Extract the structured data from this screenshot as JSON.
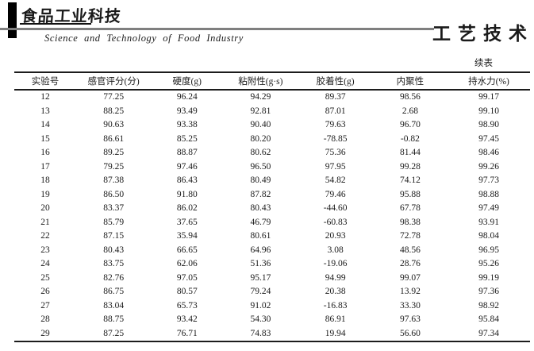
{
  "masthead": {
    "logo_cn": "食品工业科技",
    "journal_en": "Science and Technology of Food Industry",
    "section_cn": "工艺技术"
  },
  "table": {
    "continued_label": "续表",
    "headers": [
      "实验号",
      "感官评分(分)",
      "硬度(g)",
      "粘附性(g·s)",
      "胶着性(g)",
      "内聚性",
      "持水力(%)"
    ],
    "rows": [
      [
        "12",
        "77.25",
        "96.24",
        "94.29",
        "89.37",
        "98.56",
        "99.17"
      ],
      [
        "13",
        "88.25",
        "93.49",
        "92.81",
        "87.01",
        "2.68",
        "99.10"
      ],
      [
        "14",
        "90.63",
        "93.38",
        "90.40",
        "79.63",
        "96.70",
        "98.90"
      ],
      [
        "15",
        "86.61",
        "85.25",
        "80.20",
        "-78.85",
        "-0.82",
        "97.45"
      ],
      [
        "16",
        "89.25",
        "88.87",
        "80.62",
        "75.36",
        "81.44",
        "98.46"
      ],
      [
        "17",
        "79.25",
        "97.46",
        "96.50",
        "97.95",
        "99.28",
        "99.26"
      ],
      [
        "18",
        "87.38",
        "86.43",
        "80.49",
        "54.82",
        "74.12",
        "97.73"
      ],
      [
        "19",
        "86.50",
        "91.80",
        "87.82",
        "79.46",
        "95.88",
        "98.88"
      ],
      [
        "20",
        "83.37",
        "86.02",
        "80.43",
        "-44.60",
        "67.78",
        "97.49"
      ],
      [
        "21",
        "85.79",
        "37.65",
        "46.79",
        "-60.83",
        "98.38",
        "93.91"
      ],
      [
        "22",
        "87.15",
        "35.94",
        "80.61",
        "20.93",
        "72.78",
        "98.04"
      ],
      [
        "23",
        "80.43",
        "66.65",
        "64.96",
        "3.08",
        "48.56",
        "96.95"
      ],
      [
        "24",
        "83.75",
        "62.06",
        "51.36",
        "-19.06",
        "28.76",
        "95.26"
      ],
      [
        "25",
        "82.76",
        "97.05",
        "95.17",
        "94.99",
        "99.07",
        "99.19"
      ],
      [
        "26",
        "86.75",
        "80.57",
        "79.24",
        "20.38",
        "13.92",
        "97.36"
      ],
      [
        "27",
        "83.04",
        "65.73",
        "91.02",
        "-16.83",
        "33.30",
        "98.92"
      ],
      [
        "28",
        "88.75",
        "93.42",
        "54.30",
        "86.91",
        "97.63",
        "95.84"
      ],
      [
        "29",
        "87.25",
        "76.71",
        "74.83",
        "19.94",
        "56.60",
        "97.34"
      ]
    ]
  }
}
